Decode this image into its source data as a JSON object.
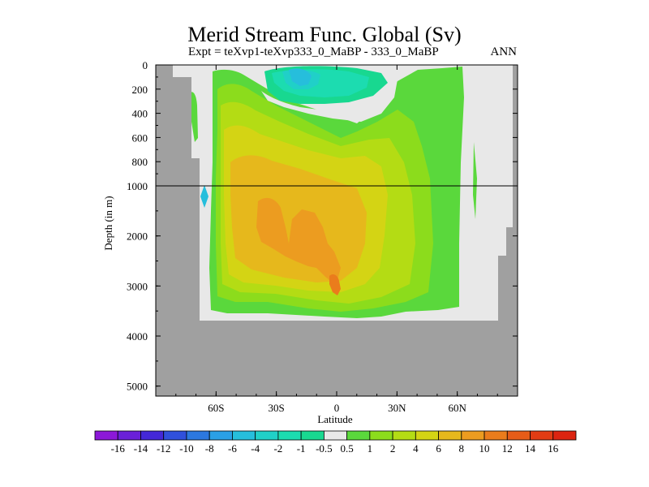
{
  "chart_data": {
    "type": "heatmap",
    "title": "Merid Stream Func. Global (Sv)",
    "subtitle": "Expt = teXvp1-teXvp333_0_MaBP - 333_0_MaBP",
    "season_label": "ANN",
    "xlabel": "Latitude",
    "ylabel": "Depth (in m)",
    "x_ticks": [
      "60S",
      "30S",
      "0",
      "30N",
      "60N"
    ],
    "x_tick_values": [
      -60,
      -30,
      0,
      30,
      60
    ],
    "xlim": [
      -90,
      90
    ],
    "y_ticks_upper": [
      "0",
      "200",
      "400",
      "600",
      "800",
      "1000"
    ],
    "y_ticks_lower": [
      "2000",
      "3000",
      "4000",
      "5000"
    ],
    "y_upper_range": [
      0,
      1000
    ],
    "y_lower_range": [
      1000,
      5200
    ],
    "colorbar": {
      "labels": [
        "-16",
        "-14",
        "-12",
        "-10",
        "-8",
        "-6",
        "-4",
        "-2",
        "-1",
        "-0.5",
        "0.5",
        "1",
        "2",
        "4",
        "6",
        "8",
        "10",
        "12",
        "14",
        "16"
      ],
      "colors": [
        "#8c18d8",
        "#6a20d8",
        "#4428d8",
        "#3050dc",
        "#2c78e0",
        "#2aa0e6",
        "#26bedc",
        "#20d0c8",
        "#1cdcb0",
        "#18d890",
        "#e8e8e8",
        "#5ad83c",
        "#8cdc1c",
        "#b4dc14",
        "#d4d414",
        "#e6b81c",
        "#ec9c20",
        "#ea7c1c",
        "#e65c18",
        "#e23c14",
        "#dc2410"
      ]
    },
    "colors": {
      "land": "#a0a0a0",
      "zero_contour": "#e8e8e8",
      "separator_line": "#000000"
    }
  }
}
